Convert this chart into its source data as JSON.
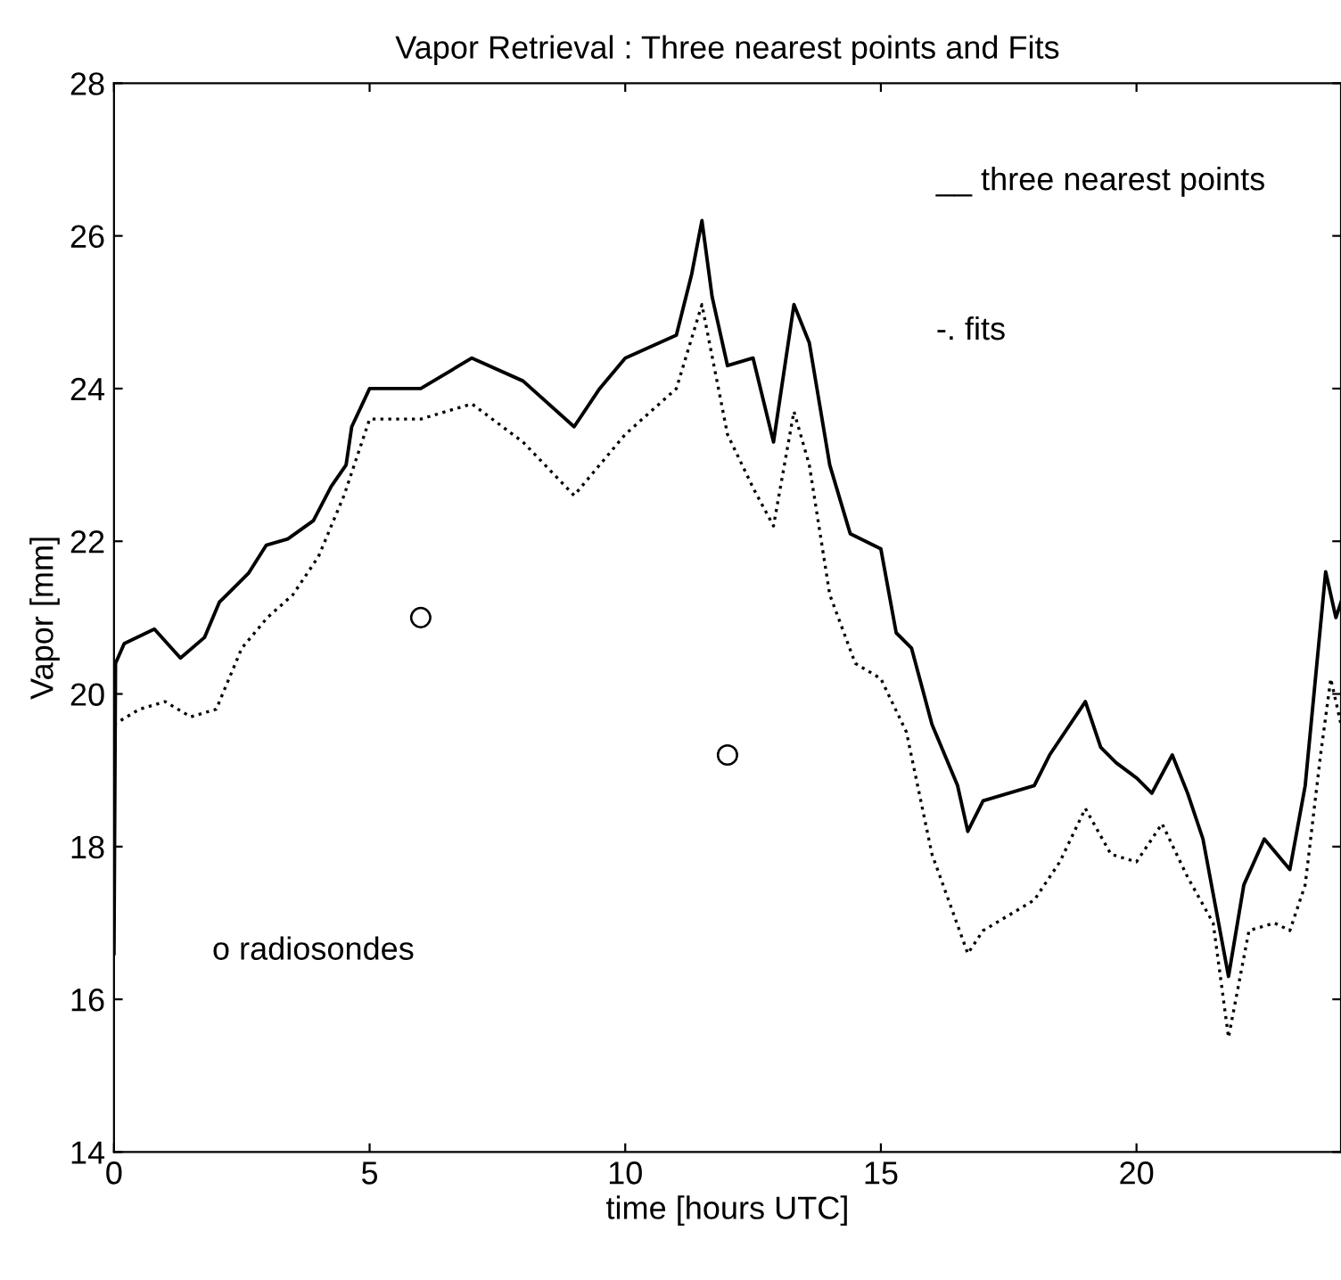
{
  "chart_data": {
    "type": "line",
    "title": "Vapor Retrieval : Three nearest points and Fits",
    "xlabel": "time [hours UTC]",
    "ylabel": "Vapor [mm]",
    "xlim": [
      0,
      24
    ],
    "xticks": [
      0,
      5,
      10,
      15,
      20
    ],
    "ylim": [
      14,
      28
    ],
    "yticks": [
      14,
      16,
      18,
      20,
      22,
      24,
      26,
      28
    ],
    "grid": false,
    "legend": false,
    "annotations": [
      "__ three nearest points",
      "-. fits",
      "o radiosondes"
    ],
    "series": [
      {
        "color": "#000000",
        "line_style": "solid",
        "marker": "none",
        "x": [
          0,
          0.03,
          0.2,
          0.79,
          1.3,
          1.77,
          2.06,
          2.63,
          2.98,
          3.4,
          3.9,
          4.25,
          4.54,
          4.65,
          5,
          6,
          7,
          8,
          9,
          9.5,
          10,
          11,
          11.3,
          11.5,
          11.7,
          12,
          12.5,
          12.9,
          13.3,
          13.6,
          14,
          14.4,
          15,
          15.3,
          15.6,
          16,
          16.5,
          16.7,
          17,
          17.5,
          18,
          18.3,
          19,
          19.3,
          19.6,
          20,
          20.3,
          20.7,
          21,
          21.3,
          21.8,
          22.1,
          22.5,
          23,
          23.3,
          23.7,
          23.9,
          24
        ],
        "values": [
          16.6,
          20.4,
          20.66,
          20.85,
          20.47,
          20.74,
          21.2,
          21.58,
          21.95,
          22.03,
          22.27,
          22.72,
          23.0,
          23.5,
          24.0,
          24.0,
          24.4,
          24.1,
          23.5,
          24.0,
          24.4,
          24.7,
          25.5,
          26.2,
          25.2,
          24.3,
          24.4,
          23.3,
          25.1,
          24.6,
          23.0,
          22.1,
          21.9,
          20.8,
          20.6,
          19.6,
          18.8,
          18.2,
          18.6,
          18.7,
          18.8,
          19.2,
          19.9,
          19.3,
          19.1,
          18.9,
          18.7,
          19.2,
          18.7,
          18.1,
          16.3,
          17.5,
          18.1,
          17.7,
          18.8,
          21.6,
          21.0,
          21.2
        ]
      },
      {
        "color": "#000000",
        "line_style": "dotted",
        "marker": "none",
        "x": [
          0,
          0.5,
          1,
          1.5,
          2,
          2.5,
          3,
          3.5,
          4,
          4.5,
          5,
          6,
          7,
          8,
          9,
          10,
          11,
          11.5,
          12,
          12.5,
          12.9,
          13.3,
          13.6,
          14,
          14.5,
          15,
          15.5,
          16,
          16.7,
          17,
          17.5,
          18,
          18.5,
          19,
          19.5,
          20,
          20.5,
          21,
          21.5,
          21.8,
          22.2,
          22.7,
          23,
          23.3,
          23.6,
          23.8,
          24
        ],
        "values": [
          19.6,
          19.8,
          19.9,
          19.7,
          19.8,
          20.6,
          21.0,
          21.3,
          21.8,
          22.6,
          23.6,
          23.6,
          23.8,
          23.3,
          22.6,
          23.4,
          24.0,
          25.1,
          23.4,
          22.7,
          22.2,
          23.7,
          23.0,
          21.3,
          20.4,
          20.2,
          19.5,
          17.9,
          16.6,
          16.9,
          17.1,
          17.3,
          17.8,
          18.5,
          17.9,
          17.8,
          18.3,
          17.6,
          17.0,
          15.5,
          16.9,
          17.0,
          16.9,
          17.5,
          19.2,
          20.2,
          19.6
        ]
      },
      {
        "type": "scatter",
        "color": "#000000",
        "marker": "circle",
        "x": [
          6,
          12
        ],
        "values": [
          21.0,
          19.2
        ]
      }
    ]
  }
}
